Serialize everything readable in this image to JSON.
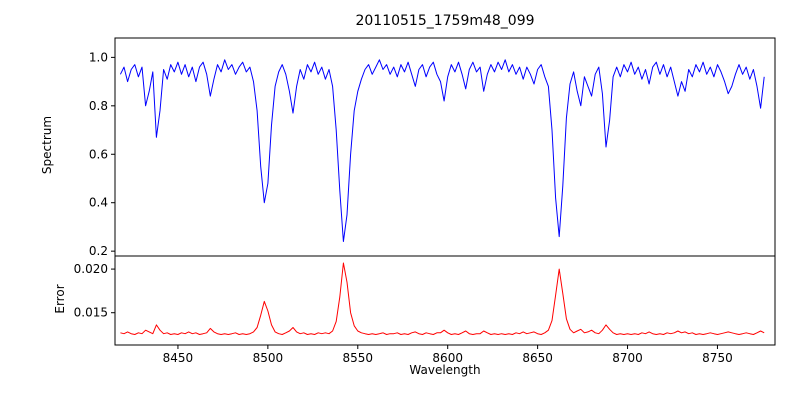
{
  "chart_data": [
    {
      "type": "line",
      "title": "20110515_1759m48_099",
      "ylabel": "Spectrum",
      "series_name": "spectrum",
      "color": "#0000ff",
      "grid": false,
      "legend": "none",
      "xlim": [
        8415,
        8782
      ],
      "ylim": [
        0.18,
        1.08
      ],
      "yticks": [
        0.2,
        0.4,
        0.6,
        0.8,
        1.0
      ],
      "ytick_labels": [
        "0.2",
        "0.4",
        "0.6",
        "0.8",
        "1.0"
      ],
      "x_start": 8418,
      "x_step": 2,
      "y": [
        0.93,
        0.96,
        0.9,
        0.95,
        0.97,
        0.92,
        0.96,
        0.8,
        0.86,
        0.94,
        0.67,
        0.78,
        0.95,
        0.91,
        0.97,
        0.94,
        0.98,
        0.93,
        0.97,
        0.92,
        0.96,
        0.9,
        0.96,
        0.98,
        0.93,
        0.84,
        0.91,
        0.97,
        0.94,
        0.99,
        0.95,
        0.97,
        0.93,
        0.96,
        0.98,
        0.94,
        0.96,
        0.9,
        0.78,
        0.55,
        0.4,
        0.48,
        0.72,
        0.88,
        0.94,
        0.97,
        0.93,
        0.86,
        0.77,
        0.88,
        0.95,
        0.91,
        0.97,
        0.94,
        0.98,
        0.93,
        0.96,
        0.91,
        0.95,
        0.88,
        0.7,
        0.45,
        0.24,
        0.35,
        0.6,
        0.78,
        0.86,
        0.91,
        0.95,
        0.97,
        0.93,
        0.96,
        0.99,
        0.95,
        0.97,
        0.93,
        0.96,
        0.92,
        0.97,
        0.94,
        0.98,
        0.93,
        0.88,
        0.95,
        0.97,
        0.92,
        0.96,
        0.98,
        0.93,
        0.9,
        0.82,
        0.92,
        0.97,
        0.94,
        0.98,
        0.93,
        0.87,
        0.95,
        0.98,
        0.94,
        0.96,
        0.86,
        0.93,
        0.97,
        0.94,
        0.98,
        0.95,
        0.99,
        0.94,
        0.97,
        0.93,
        0.96,
        0.91,
        0.96,
        0.93,
        0.89,
        0.95,
        0.97,
        0.92,
        0.88,
        0.7,
        0.42,
        0.26,
        0.47,
        0.75,
        0.89,
        0.94,
        0.86,
        0.8,
        0.92,
        0.88,
        0.84,
        0.93,
        0.96,
        0.85,
        0.63,
        0.74,
        0.92,
        0.96,
        0.92,
        0.97,
        0.94,
        0.98,
        0.93,
        0.96,
        0.91,
        0.95,
        0.89,
        0.96,
        0.98,
        0.93,
        0.97,
        0.92,
        0.96,
        0.9,
        0.84,
        0.9,
        0.86,
        0.95,
        0.92,
        0.97,
        0.94,
        0.98,
        0.93,
        0.96,
        0.92,
        0.97,
        0.94,
        0.9,
        0.85,
        0.88,
        0.93,
        0.97,
        0.93,
        0.96,
        0.91,
        0.95,
        0.88,
        0.79,
        0.92
      ]
    },
    {
      "type": "line",
      "ylabel": "Error",
      "xlabel": "Wavelength",
      "series_name": "error",
      "color": "#ff0000",
      "grid": false,
      "legend": "none",
      "xlim": [
        8415,
        8782
      ],
      "ylim": [
        0.0113,
        0.0215
      ],
      "yticks": [
        0.015,
        0.02
      ],
      "ytick_labels": [
        "0.015",
        "0.020"
      ],
      "xticks": [
        8450,
        8500,
        8550,
        8600,
        8650,
        8700,
        8750
      ],
      "xtick_labels": [
        "8450",
        "8500",
        "8550",
        "8600",
        "8650",
        "8700",
        "8750"
      ],
      "x_start": 8418,
      "x_step": 2,
      "y": [
        0.0127,
        0.0126,
        0.0128,
        0.0126,
        0.0125,
        0.0127,
        0.0126,
        0.013,
        0.0128,
        0.0126,
        0.0136,
        0.013,
        0.0126,
        0.0127,
        0.0125,
        0.0126,
        0.0125,
        0.0127,
        0.0126,
        0.0128,
        0.0126,
        0.0127,
        0.0125,
        0.0126,
        0.0127,
        0.0132,
        0.0128,
        0.0126,
        0.0125,
        0.0126,
        0.0125,
        0.0126,
        0.0127,
        0.0125,
        0.0126,
        0.0125,
        0.0126,
        0.0128,
        0.0133,
        0.0147,
        0.0163,
        0.0152,
        0.0136,
        0.0128,
        0.0126,
        0.0125,
        0.0127,
        0.0129,
        0.0133,
        0.0128,
        0.0126,
        0.0127,
        0.0125,
        0.0126,
        0.0125,
        0.0127,
        0.0126,
        0.0127,
        0.0126,
        0.0129,
        0.014,
        0.0168,
        0.0207,
        0.0185,
        0.015,
        0.0135,
        0.0129,
        0.0127,
        0.0126,
        0.0125,
        0.0126,
        0.0125,
        0.0126,
        0.0127,
        0.0125,
        0.0126,
        0.0126,
        0.0127,
        0.0125,
        0.0126,
        0.0125,
        0.0127,
        0.0128,
        0.0126,
        0.0125,
        0.0127,
        0.0126,
        0.0125,
        0.0127,
        0.0127,
        0.013,
        0.0127,
        0.0125,
        0.0126,
        0.0125,
        0.0127,
        0.0129,
        0.0126,
        0.0125,
        0.0126,
        0.0126,
        0.0129,
        0.0127,
        0.0125,
        0.0126,
        0.0125,
        0.0126,
        0.0125,
        0.0126,
        0.0125,
        0.0127,
        0.0126,
        0.0128,
        0.0126,
        0.0127,
        0.0128,
        0.0126,
        0.0125,
        0.0127,
        0.013,
        0.0141,
        0.017,
        0.02,
        0.0172,
        0.0143,
        0.0131,
        0.0127,
        0.0129,
        0.0131,
        0.0127,
        0.0128,
        0.013,
        0.0127,
        0.0126,
        0.013,
        0.0136,
        0.0131,
        0.0127,
        0.0125,
        0.0126,
        0.0125,
        0.0126,
        0.0125,
        0.0126,
        0.0125,
        0.0127,
        0.0126,
        0.0128,
        0.0126,
        0.0125,
        0.0126,
        0.0125,
        0.0127,
        0.0126,
        0.0127,
        0.0129,
        0.0127,
        0.0128,
        0.0126,
        0.0127,
        0.0125,
        0.0126,
        0.0125,
        0.0126,
        0.0127,
        0.0126,
        0.0125,
        0.0126,
        0.0127,
        0.0128,
        0.0127,
        0.0126,
        0.0125,
        0.0126,
        0.0127,
        0.0126,
        0.0125,
        0.0127,
        0.0129,
        0.0127
      ]
    }
  ]
}
